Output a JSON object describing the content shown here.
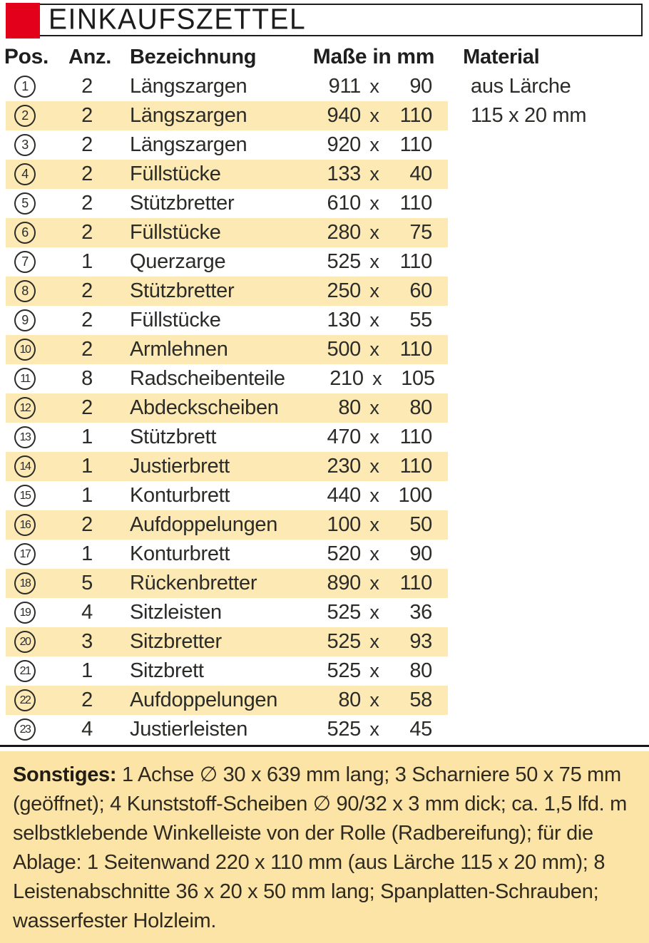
{
  "title": "EINKAUFSZETTEL",
  "columns": {
    "pos": "Pos.",
    "qty": "Anz.",
    "name": "Bezeichnung",
    "dims": "Maße in mm",
    "material": "Material"
  },
  "dims_separator": "x",
  "rows": [
    {
      "pos": "1",
      "qty": "2",
      "name": "Längszargen",
      "w": "911",
      "h": "90",
      "material": "aus Lärche"
    },
    {
      "pos": "2",
      "qty": "2",
      "name": "Längszargen",
      "w": "940",
      "h": "110",
      "material": "115 x 20 mm"
    },
    {
      "pos": "3",
      "qty": "2",
      "name": "Längszargen",
      "w": "920",
      "h": "110",
      "material": ""
    },
    {
      "pos": "4",
      "qty": "2",
      "name": "Füllstücke",
      "w": "133",
      "h": "40",
      "material": ""
    },
    {
      "pos": "5",
      "qty": "2",
      "name": "Stützbretter",
      "w": "610",
      "h": "110",
      "material": ""
    },
    {
      "pos": "6",
      "qty": "2",
      "name": "Füllstücke",
      "w": "280",
      "h": "75",
      "material": ""
    },
    {
      "pos": "7",
      "qty": "1",
      "name": "Querzarge",
      "w": "525",
      "h": "110",
      "material": ""
    },
    {
      "pos": "8",
      "qty": "2",
      "name": "Stützbretter",
      "w": "250",
      "h": "60",
      "material": ""
    },
    {
      "pos": "9",
      "qty": "2",
      "name": "Füllstücke",
      "w": "130",
      "h": "55",
      "material": ""
    },
    {
      "pos": "10",
      "qty": "2",
      "name": "Armlehnen",
      "w": "500",
      "h": "110",
      "material": ""
    },
    {
      "pos": "11",
      "qty": "8",
      "name": "Radscheibenteile",
      "w": "210",
      "h": "105",
      "material": ""
    },
    {
      "pos": "12",
      "qty": "2",
      "name": "Abdeckscheiben",
      "w": "80",
      "h": "80",
      "material": ""
    },
    {
      "pos": "13",
      "qty": "1",
      "name": "Stützbrett",
      "w": "470",
      "h": "110",
      "material": ""
    },
    {
      "pos": "14",
      "qty": "1",
      "name": "Justierbrett",
      "w": "230",
      "h": "110",
      "material": ""
    },
    {
      "pos": "15",
      "qty": "1",
      "name": "Konturbrett",
      "w": "440",
      "h": "100",
      "material": ""
    },
    {
      "pos": "16",
      "qty": "2",
      "name": "Aufdoppelungen",
      "w": "100",
      "h": "50",
      "material": ""
    },
    {
      "pos": "17",
      "qty": "1",
      "name": "Konturbrett",
      "w": "520",
      "h": "90",
      "material": ""
    },
    {
      "pos": "18",
      "qty": "5",
      "name": "Rückenbretter",
      "w": "890",
      "h": "110",
      "material": ""
    },
    {
      "pos": "19",
      "qty": "4",
      "name": "Sitzleisten",
      "w": "525",
      "h": "36",
      "material": ""
    },
    {
      "pos": "20",
      "qty": "3",
      "name": "Sitzbretter",
      "w": "525",
      "h": "93",
      "material": ""
    },
    {
      "pos": "21",
      "qty": "1",
      "name": "Sitzbrett",
      "w": "525",
      "h": "80",
      "material": ""
    },
    {
      "pos": "22",
      "qty": "2",
      "name": "Aufdoppelungen",
      "w": "80",
      "h": "58",
      "material": ""
    },
    {
      "pos": "23",
      "qty": "4",
      "name": "Justierleisten",
      "w": "525",
      "h": "45",
      "material": ""
    }
  ],
  "notes": {
    "label": "Sonstiges:",
    "text": " 1 Achse ∅ 30 x 639 mm lang; 3 Scharniere 50 x 75 mm (geöffnet); 4 Kunststoff-Scheiben ∅ 90/32 x 3 mm dick; ca. 1,5 lfd. m selbstklebende Winkelleiste von der Rolle (Radbereifung); für die Ablage: 1 Seitenwand 220 x 110 mm (aus Lärche 115 x 20 mm); 8 Leistenabschnitte 36 x 20 x 50 mm lang; Spanplatten-Schrauben; wasserfester Holzleim."
  },
  "colors": {
    "accent_red": "#e2001a",
    "row_highlight": "#fce9b4",
    "notes_bg": "#fbe4a6",
    "ink": "#2b2b28"
  }
}
